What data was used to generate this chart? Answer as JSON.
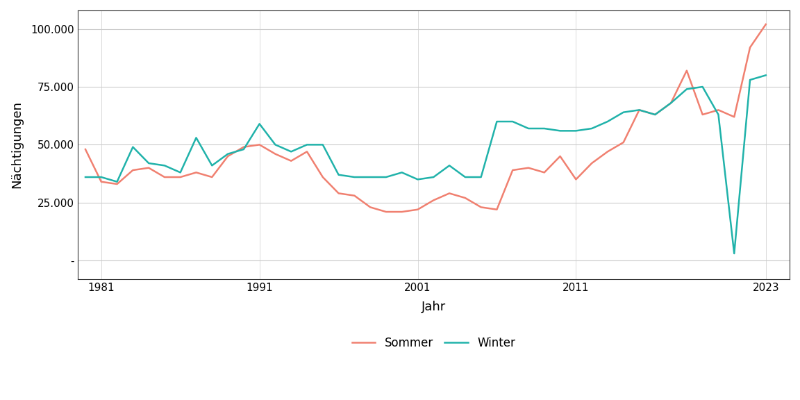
{
  "years": [
    1980,
    1981,
    1982,
    1983,
    1984,
    1985,
    1986,
    1987,
    1988,
    1989,
    1990,
    1991,
    1992,
    1993,
    1994,
    1995,
    1996,
    1997,
    1998,
    1999,
    2000,
    2001,
    2002,
    2003,
    2004,
    2005,
    2006,
    2007,
    2008,
    2009,
    2010,
    2011,
    2012,
    2013,
    2014,
    2015,
    2016,
    2017,
    2018,
    2019,
    2020,
    2021,
    2022,
    2023
  ],
  "sommer": [
    48000,
    34000,
    33000,
    39000,
    40000,
    36000,
    36000,
    38000,
    36000,
    45000,
    49000,
    50000,
    46000,
    43000,
    47000,
    36000,
    29000,
    28000,
    23000,
    21000,
    21000,
    22000,
    26000,
    29000,
    27000,
    23000,
    22000,
    39000,
    40000,
    38000,
    45000,
    35000,
    42000,
    47000,
    51000,
    65000,
    63000,
    68000,
    82000,
    63000,
    65000,
    62000,
    92000,
    102000
  ],
  "winter": [
    36000,
    36000,
    34000,
    49000,
    42000,
    41000,
    38000,
    53000,
    41000,
    46000,
    48000,
    59000,
    50000,
    47000,
    50000,
    50000,
    37000,
    36000,
    36000,
    36000,
    38000,
    35000,
    36000,
    41000,
    36000,
    36000,
    60000,
    60000,
    57000,
    57000,
    56000,
    56000,
    57000,
    60000,
    64000,
    65000,
    63000,
    68000,
    74000,
    75000,
    63000,
    3000,
    78000,
    80000
  ],
  "sommer_color": "#F08070",
  "winter_color": "#20B2AA",
  "background_color": "#ffffff",
  "plot_background": "#ffffff",
  "xlabel": "Jahr",
  "ylabel": "Nächtigungen",
  "xlim": [
    1979.5,
    2024.5
  ],
  "ylim": [
    -8000,
    108000
  ],
  "xticks": [
    1981,
    1991,
    2001,
    2011,
    2023
  ],
  "yticks": [
    0,
    25000,
    50000,
    75000,
    100000
  ],
  "ytick_labels": [
    "-",
    "25.000",
    "50.000",
    "75.000",
    "100.000"
  ],
  "legend_labels": [
    "Sommer",
    "Winter"
  ],
  "linewidth": 1.8
}
